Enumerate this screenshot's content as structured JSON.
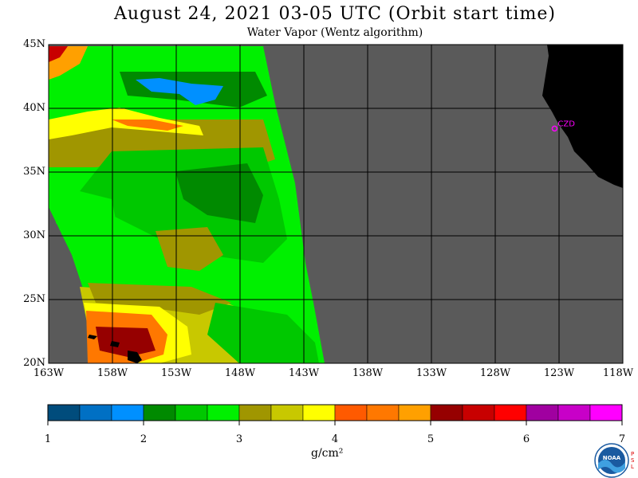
{
  "title": "August 24, 2021  03-05 UTC  (Orbit start time)",
  "subtitle": "Water Vapor (Wentz algorithm)",
  "lat_labels": [
    "45N",
    "40N",
    "35N",
    "30N",
    "25N",
    "20N"
  ],
  "lon_labels": [
    "163W",
    "158W",
    "153W",
    "148W",
    "143W",
    "138W",
    "133W",
    "128W",
    "123W",
    "118W"
  ],
  "station_label": "CZD",
  "colorbar": {
    "tick_labels": [
      "1",
      "2",
      "3",
      "4",
      "5",
      "6",
      "7"
    ],
    "unit": "g/cm²",
    "colors": [
      "#004c7c",
      "#0070c4",
      "#0090ff",
      "#008a00",
      "#00c800",
      "#00f000",
      "#a09600",
      "#c8c800",
      "#ffff00",
      "#ff5a00",
      "#ff7800",
      "#ffa000",
      "#960000",
      "#c80000",
      "#ff0000",
      "#a000a0",
      "#c800c8",
      "#ff00ff"
    ]
  },
  "colors": {
    "land": "#000000",
    "no_data": "#5a5a5a",
    "grid": "#000000",
    "station": "#ff00ff"
  },
  "logo": {
    "text": "NOAA",
    "side_text": [
      "P",
      "S",
      "L"
    ]
  },
  "chart_data": {
    "type": "heatmap",
    "title": "August 24, 2021  03-05 UTC  (Orbit start time)",
    "subtitle": "Water Vapor (Wentz algorithm)",
    "variable": "Water Vapor",
    "units": "g/cm²",
    "lon_range": [
      -163,
      -118
    ],
    "lat_range": [
      20,
      45
    ],
    "colorbar_range": [
      1,
      7
    ],
    "station": {
      "name": "CZD",
      "lon": -123.1,
      "lat": 38.6
    },
    "regions": [
      {
        "description": "high vapor core near Hawaii",
        "lon": -157.5,
        "lat": 21.5,
        "value_range": [
          5,
          5.6
        ]
      },
      {
        "description": "moist band along 39N",
        "lon": -155,
        "lat": 39,
        "value_range": [
          3.5,
          4.5
        ]
      },
      {
        "description": "dry pocket",
        "lon": -152,
        "lat": 41.5,
        "value_range": [
          1.7,
          2
        ]
      },
      {
        "description": "moderate vapor across swath",
        "lon": -150,
        "lat": 31,
        "value_range": [
          2,
          3
        ]
      }
    ]
  }
}
